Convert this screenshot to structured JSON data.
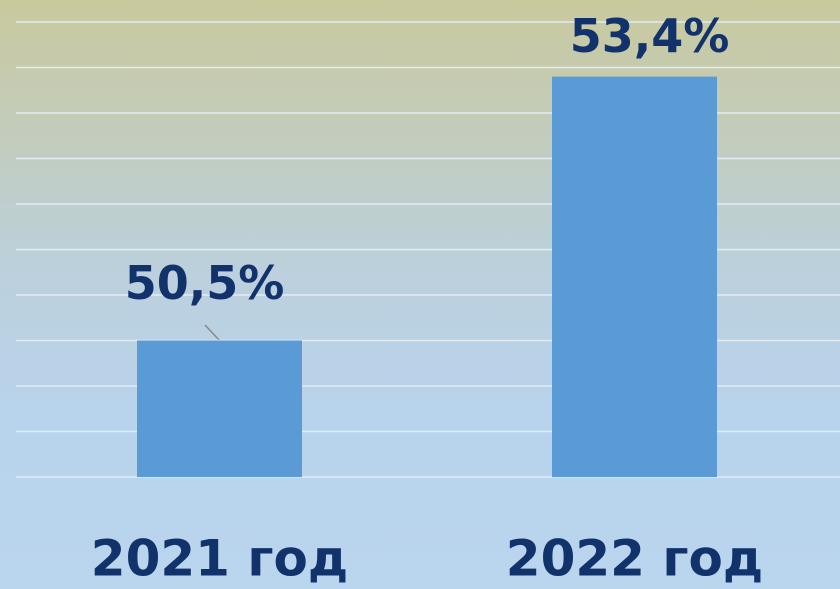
{
  "chart_data": {
    "type": "bar",
    "categories": [
      "2021 год",
      "2022 год"
    ],
    "values": [
      50.5,
      53.4
    ],
    "value_labels": [
      "50,5%",
      "53,4%"
    ],
    "color": "#5b9bd5",
    "ylim": [
      49,
      54
    ],
    "yticks": [
      49,
      49.5,
      50,
      50.5,
      51,
      51.5,
      52,
      52.5,
      53,
      53.5,
      54
    ],
    "grid": true
  }
}
